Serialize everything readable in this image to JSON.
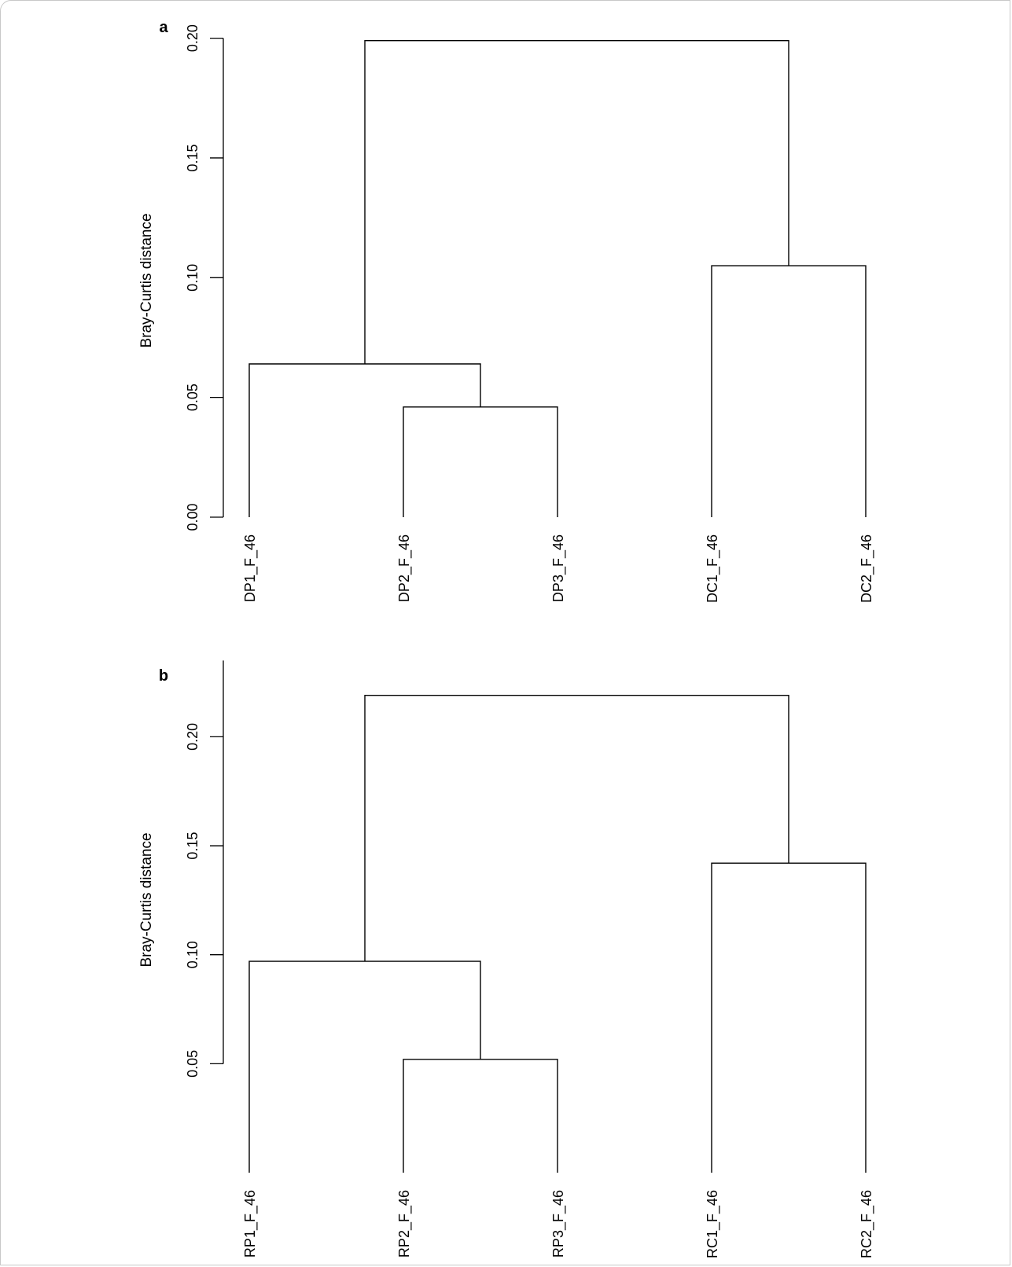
{
  "chart_data": [
    {
      "type": "dendrogram",
      "panel_label": "a",
      "ylabel": "Bray-Curtis distance",
      "ylim": [
        0,
        0.2
      ],
      "yticks": [
        "0.00",
        "0.05",
        "0.10",
        "0.15",
        "0.20"
      ],
      "leaves": [
        "DP1_F_46",
        "DP2_F_46",
        "DP3_F_46",
        "DC1_F_46",
        "DC2_F_46"
      ],
      "leaf_base": 0,
      "merges": [
        {
          "left": "DP2_F_46",
          "right": "DP3_F_46",
          "height": 0.046
        },
        {
          "left": "DP1_F_46",
          "right": "DP2_F_46+DP3_F_46",
          "height": 0.064
        },
        {
          "left": "DC1_F_46",
          "right": "DC2_F_46",
          "height": 0.105
        },
        {
          "left": "DP cluster",
          "right": "DC cluster",
          "height": 0.199
        }
      ]
    },
    {
      "type": "dendrogram",
      "panel_label": "b",
      "ylabel": "Bray-Curtis distance",
      "ylim": [
        0.05,
        0.2
      ],
      "yticks": [
        "0.05",
        "0.10",
        "0.15",
        "0.20"
      ],
      "leaves": [
        "RP1_F_46",
        "RP2_F_46",
        "RP3_F_46",
        "RC1_F_46",
        "RC2_F_46"
      ],
      "leaf_base": 0.0,
      "merges": [
        {
          "left": "RP2_F_46",
          "right": "RP3_F_46",
          "height": 0.052
        },
        {
          "left": "RP1_F_46",
          "right": "RP2_F_46+RP3_F_46",
          "height": 0.097
        },
        {
          "left": "RC1_F_46",
          "right": "RC2_F_46",
          "height": 0.142
        },
        {
          "left": "RP cluster",
          "right": "RC cluster",
          "height": 0.219
        }
      ]
    }
  ]
}
